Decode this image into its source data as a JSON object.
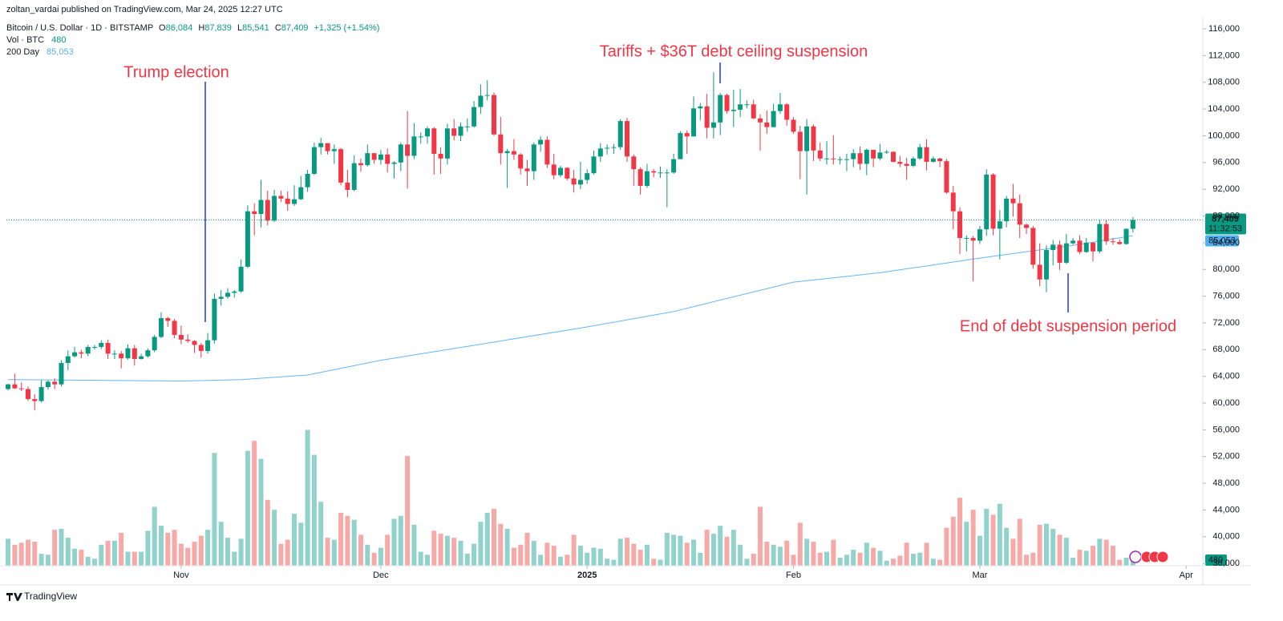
{
  "header": "zoltan_vardai published on TradingView.com, Mar 24, 2025 12:27 UTC",
  "legend": {
    "symbol": "Bitcoin / U.S. Dollar · 1D · BITSTAMP",
    "ohlc_keys": [
      "O",
      "H",
      "L",
      "C"
    ],
    "change": "+1,325 (+1.54%)"
  },
  "footer": "TradingView",
  "chart_data": {
    "type": "candlestick",
    "up_color": "#089981",
    "down_color": "#f23645",
    "volume_up_color": "#92d2cc",
    "volume_down_color": "#f7a9a7",
    "xlim": [
      -0.25,
      179.5
    ],
    "xticks": [
      {
        "value": 26,
        "label": "Nov"
      },
      {
        "value": 56,
        "label": "Dec"
      },
      {
        "value": 87,
        "label": "2025",
        "bold": true
      },
      {
        "value": 118,
        "label": "Feb"
      },
      {
        "value": 146,
        "label": "Mar"
      },
      {
        "value": 177,
        "label": "Apr"
      }
    ],
    "ylim": [
      35660,
      119360
    ],
    "yticks": [
      {
        "value": 36000,
        "label": "36,000"
      },
      {
        "value": 40000,
        "label": "40,000"
      },
      {
        "value": 44000,
        "label": "44,000"
      },
      {
        "value": 48000,
        "label": "48,000"
      },
      {
        "value": 52000,
        "label": "52,000"
      },
      {
        "value": 56000,
        "label": "56,000"
      },
      {
        "value": 60000,
        "label": "60,000"
      },
      {
        "value": 64000,
        "label": "64,000"
      },
      {
        "value": 68000,
        "label": "68,000"
      },
      {
        "value": 72000,
        "label": "72,000"
      },
      {
        "value": 76000,
        "label": "76,000"
      },
      {
        "value": 80000,
        "label": "80,000"
      },
      {
        "value": 84000,
        "label": "84,000"
      },
      {
        "value": 88000,
        "label": "88,000"
      },
      {
        "value": 92000,
        "label": "92,000"
      },
      {
        "value": 96000,
        "label": "96,000"
      },
      {
        "value": 100000,
        "label": "100,000"
      },
      {
        "value": 104000,
        "label": "104,000"
      },
      {
        "value": 108000,
        "label": "108,000"
      },
      {
        "value": 112000,
        "label": "112,000"
      },
      {
        "value": 116000,
        "label": "116,000"
      }
    ],
    "y2lim": [
      0,
      56000
    ],
    "grid": false,
    "ohlc": [
      [
        62100,
        62900,
        61900,
        62800
      ],
      [
        62800,
        64400,
        62100,
        62200
      ],
      [
        62200,
        63100,
        61800,
        62100
      ],
      [
        62100,
        62500,
        60300,
        60600
      ],
      [
        60600,
        61300,
        58900,
        60300
      ],
      [
        60300,
        63400,
        60100,
        62400
      ],
      [
        62400,
        63400,
        62000,
        63200
      ],
      [
        63200,
        63700,
        62100,
        62800
      ],
      [
        62800,
        66400,
        62500,
        66000
      ],
      [
        66000,
        67900,
        64900,
        67000
      ],
      [
        67000,
        68400,
        66800,
        67600
      ],
      [
        67600,
        68000,
        66700,
        67400
      ],
      [
        67400,
        68700,
        67000,
        68400
      ],
      [
        68400,
        68700,
        68000,
        68400
      ],
      [
        68400,
        69400,
        68100,
        69000
      ],
      [
        69000,
        69500,
        66600,
        67400
      ],
      [
        67400,
        67900,
        66600,
        67400
      ],
      [
        67400,
        67800,
        65200,
        66700
      ],
      [
        66700,
        68800,
        66500,
        68200
      ],
      [
        68200,
        68700,
        65600,
        66600
      ],
      [
        66600,
        67400,
        66500,
        67000
      ],
      [
        67000,
        68200,
        66800,
        67900
      ],
      [
        67900,
        70200,
        67600,
        69900
      ],
      [
        69900,
        73600,
        69700,
        72700
      ],
      [
        72700,
        72900,
        71400,
        72300
      ],
      [
        72300,
        72600,
        69700,
        70200
      ],
      [
        70200,
        71600,
        68800,
        69500
      ],
      [
        69500,
        70300,
        69000,
        69300
      ],
      [
        69300,
        69400,
        67500,
        68700
      ],
      [
        68700,
        69000,
        66800,
        67800
      ],
      [
        67800,
        70500,
        67400,
        69400
      ],
      [
        69400,
        76400,
        68900,
        75600
      ],
      [
        75600,
        76900,
        74600,
        75900
      ],
      [
        75900,
        77200,
        75600,
        76500
      ],
      [
        76500,
        76900,
        75800,
        76700
      ],
      [
        76700,
        81500,
        76500,
        80400
      ],
      [
        80400,
        89600,
        80200,
        88700
      ],
      [
        88700,
        89900,
        85100,
        88300
      ],
      [
        88300,
        93400,
        86300,
        90400
      ],
      [
        90400,
        91800,
        86600,
        87300
      ],
      [
        87300,
        91900,
        87100,
        91000
      ],
      [
        91000,
        91800,
        90100,
        90600
      ],
      [
        90600,
        91700,
        88800,
        89800
      ],
      [
        89800,
        92600,
        89500,
        90500
      ],
      [
        90500,
        94000,
        90400,
        92300
      ],
      [
        92300,
        94900,
        91600,
        94300
      ],
      [
        94300,
        99000,
        94100,
        98300
      ],
      [
        98300,
        99700,
        97200,
        98900
      ],
      [
        98900,
        98900,
        97200,
        97700
      ],
      [
        97700,
        98700,
        95800,
        98000
      ],
      [
        98000,
        98200,
        92600,
        93000
      ],
      [
        93000,
        94900,
        90800,
        91900
      ],
      [
        91900,
        97100,
        91700,
        95900
      ],
      [
        95900,
        96600,
        94600,
        95600
      ],
      [
        95600,
        98700,
        95400,
        97400
      ],
      [
        97400,
        97400,
        95800,
        96400
      ],
      [
        96400,
        97900,
        95700,
        97200
      ],
      [
        97200,
        98100,
        94500,
        95800
      ],
      [
        95800,
        96200,
        93600,
        96000
      ],
      [
        96000,
        99000,
        94700,
        98700
      ],
      [
        98700,
        103700,
        92100,
        97000
      ],
      [
        97000,
        101900,
        96500,
        99900
      ],
      [
        99900,
        100500,
        98800,
        99900
      ],
      [
        99900,
        101400,
        98800,
        101100
      ],
      [
        101100,
        101300,
        94200,
        97300
      ],
      [
        97300,
        98300,
        94300,
        96600
      ],
      [
        96600,
        101800,
        95700,
        101100
      ],
      [
        101100,
        102500,
        99300,
        100000
      ],
      [
        100000,
        102000,
        99200,
        101400
      ],
      [
        101400,
        102600,
        100600,
        101400
      ],
      [
        101400,
        105200,
        101200,
        104300
      ],
      [
        104300,
        107700,
        103300,
        106000
      ],
      [
        106000,
        108300,
        105300,
        106100
      ],
      [
        106100,
        106500,
        100000,
        100200
      ],
      [
        100200,
        102800,
        95700,
        97400
      ],
      [
        97400,
        98000,
        92200,
        97700
      ],
      [
        97700,
        99500,
        96400,
        97200
      ],
      [
        97200,
        97400,
        94200,
        95100
      ],
      [
        95100,
        96400,
        92500,
        94700
      ],
      [
        94700,
        99000,
        93400,
        98700
      ],
      [
        98700,
        99900,
        97600,
        99400
      ],
      [
        99400,
        99900,
        95200,
        95700
      ],
      [
        95700,
        97300,
        93500,
        94100
      ],
      [
        94100,
        95500,
        93800,
        95200
      ],
      [
        95200,
        95300,
        93300,
        93600
      ],
      [
        93600,
        94900,
        91500,
        92700
      ],
      [
        92700,
        96100,
        92000,
        93400
      ],
      [
        93400,
        95000,
        92800,
        94400
      ],
      [
        94400,
        97800,
        94200,
        96900
      ],
      [
        96900,
        98900,
        96100,
        98100
      ],
      [
        98100,
        98700,
        97200,
        98200
      ],
      [
        98200,
        98800,
        97300,
        98300
      ],
      [
        98300,
        102500,
        97900,
        102200
      ],
      [
        102200,
        102700,
        96100,
        96900
      ],
      [
        96900,
        97200,
        92500,
        95000
      ],
      [
        95000,
        95300,
        91200,
        92500
      ],
      [
        92500,
        95800,
        92200,
        94700
      ],
      [
        94700,
        95000,
        93800,
        94500
      ],
      [
        94500,
        95400,
        93700,
        94500
      ],
      [
        94500,
        95000,
        89300,
        94500
      ],
      [
        94500,
        97300,
        94300,
        96500
      ],
      [
        96500,
        100700,
        96500,
        100400
      ],
      [
        100400,
        100800,
        97300,
        99900
      ],
      [
        99900,
        105900,
        99900,
        104100
      ],
      [
        104100,
        104900,
        102300,
        104400
      ],
      [
        104400,
        106300,
        99600,
        101200
      ],
      [
        101200,
        109500,
        99600,
        102000
      ],
      [
        102000,
        106400,
        100100,
        106100
      ],
      [
        106100,
        106300,
        103300,
        103700
      ],
      [
        103700,
        106900,
        101300,
        103900
      ],
      [
        103900,
        107000,
        102800,
        104700
      ],
      [
        104700,
        105300,
        104100,
        104700
      ],
      [
        104700,
        105400,
        102500,
        102600
      ],
      [
        102600,
        103200,
        97800,
        102000
      ],
      [
        102000,
        103800,
        100300,
        101300
      ],
      [
        101300,
        104800,
        101300,
        103700
      ],
      [
        103700,
        106400,
        103300,
        104700
      ],
      [
        104700,
        104900,
        101500,
        102400
      ],
      [
        102400,
        102800,
        100300,
        100600
      ],
      [
        100600,
        101500,
        93500,
        97700
      ],
      [
        97700,
        102500,
        91200,
        101400
      ],
      [
        101400,
        101700,
        96200,
        97800
      ],
      [
        97800,
        99000,
        96200,
        96600
      ],
      [
        96600,
        99200,
        95700,
        96600
      ],
      [
        96600,
        100100,
        95700,
        96500
      ],
      [
        96500,
        96900,
        95700,
        96500
      ],
      [
        96500,
        97300,
        94700,
        96500
      ],
      [
        96500,
        98000,
        95300,
        97400
      ],
      [
        97400,
        98400,
        94900,
        95800
      ],
      [
        95800,
        98100,
        94100,
        97900
      ],
      [
        97900,
        97900,
        95300,
        96600
      ],
      [
        96600,
        98800,
        96300,
        97500
      ],
      [
        97500,
        97900,
        97300,
        97600
      ],
      [
        97600,
        97700,
        96000,
        96100
      ],
      [
        96100,
        97000,
        95300,
        95800
      ],
      [
        95800,
        96700,
        93400,
        95500
      ],
      [
        95500,
        96900,
        95300,
        96600
      ],
      [
        96600,
        98800,
        96400,
        98300
      ],
      [
        98300,
        99500,
        94800,
        96100
      ],
      [
        96100,
        96900,
        96000,
        96600
      ],
      [
        96600,
        96700,
        95300,
        96200
      ],
      [
        96200,
        96500,
        91300,
        91500
      ],
      [
        91500,
        92500,
        86000,
        88700
      ],
      [
        88700,
        89300,
        82300,
        84700
      ],
      [
        84700,
        85100,
        82700,
        84700
      ],
      [
        84700,
        85000,
        78200,
        84300
      ],
      [
        84300,
        86500,
        83800,
        86000
      ],
      [
        86000,
        95000,
        85000,
        94200
      ],
      [
        94200,
        94400,
        85100,
        86100
      ],
      [
        86100,
        88900,
        81500,
        87200
      ],
      [
        87200,
        91000,
        86300,
        90600
      ],
      [
        90600,
        92800,
        87900,
        89900
      ],
      [
        89900,
        91200,
        84700,
        86700
      ],
      [
        86700,
        86900,
        85300,
        86200
      ],
      [
        86200,
        86500,
        80100,
        80700
      ],
      [
        80700,
        83900,
        77500,
        78500
      ],
      [
        78500,
        83600,
        76600,
        82900
      ],
      [
        82900,
        84400,
        80600,
        83700
      ],
      [
        83700,
        84300,
        79900,
        81000
      ],
      [
        81000,
        85300,
        80800,
        83900
      ],
      [
        83900,
        84700,
        83700,
        84300
      ],
      [
        84300,
        85100,
        82300,
        82600
      ],
      [
        82600,
        84700,
        82500,
        84000
      ],
      [
        84000,
        84100,
        81200,
        82700
      ],
      [
        82700,
        87400,
        82400,
        86800
      ],
      [
        86800,
        87400,
        83700,
        84200
      ],
      [
        84200,
        84700,
        83700,
        84100
      ],
      [
        84100,
        84500,
        83700,
        83800
      ],
      [
        83800,
        86100,
        83700,
        86084
      ],
      [
        86084,
        87839,
        85541,
        87409
      ]
    ],
    "ohlc_labels": [
      "86,084",
      "87,839",
      "85,541",
      "87,409"
    ],
    "countdown": "11:32:53",
    "volume_name": "Vol · BTC",
    "volume": [
      2700,
      2100,
      2300,
      2600,
      2400,
      1200,
      1100,
      3600,
      3700,
      2800,
      1700,
      1600,
      900,
      700,
      2100,
      2500,
      2500,
      3300,
      1400,
      1400,
      1400,
      3500,
      5900,
      4000,
      3300,
      3600,
      2200,
      1800,
      2400,
      3000,
      3600,
      11300,
      4400,
      2800,
      1400,
      2700,
      11500,
      12500,
      10700,
      6600,
      5600,
      2200,
      2600,
      5200,
      4300,
      13600,
      11100,
      6400,
      2800,
      2600,
      5300,
      5000,
      4600,
      3100,
      2100,
      1300,
      1800,
      3100,
      4700,
      5000,
      11000,
      4100,
      1400,
      1100,
      3500,
      3200,
      3000,
      2800,
      2500,
      1200,
      2200,
      4400,
      5300,
      5700,
      4200,
      3700,
      1800,
      2100,
      3300,
      2500,
      1100,
      2300,
      2000,
      900,
      1100,
      3100,
      2000,
      1300,
      1800,
      1700,
      700,
      600,
      2700,
      2800,
      2200,
      1600,
      2100,
      700,
      600,
      3300,
      3100,
      3000,
      2300,
      2600,
      1300,
      3600,
      3200,
      4000,
      2900,
      3600,
      2100,
      700,
      1200,
      5900,
      2400,
      2100,
      1900,
      2500,
      1100,
      4300,
      2700,
      2400,
      1300,
      1400,
      2600,
      800,
      1100,
      1600,
      1300,
      2300,
      1800,
      1500,
      500,
      700,
      1000,
      2300,
      1200,
      1300,
      2300,
      700,
      600,
      3800,
      4900,
      6800,
      4400,
      5600,
      3000,
      5700,
      5100,
      6200,
      3800,
      2700,
      4700,
      1100,
      1300,
      4100,
      4200,
      3700,
      3100,
      2800,
      800,
      1600,
      1500,
      2000,
      2700,
      2600,
      2000,
      600,
      800,
      480
    ],
    "ma": {
      "name": "200 Day",
      "color": "#64b5f6",
      "x": [
        0,
        15,
        26,
        35,
        45,
        56,
        71,
        87,
        100,
        118,
        131,
        146,
        160,
        169
      ],
      "values": [
        63500,
        63400,
        63300,
        63500,
        64200,
        66400,
        68800,
        71400,
        73700,
        78100,
        79500,
        81700,
        83600,
        85053
      ],
      "value_label": "85,053"
    },
    "annotations": [
      "Trump election",
      "Tariffs + $36T debt ceiling suspension",
      "End of debt suspension period"
    ]
  }
}
